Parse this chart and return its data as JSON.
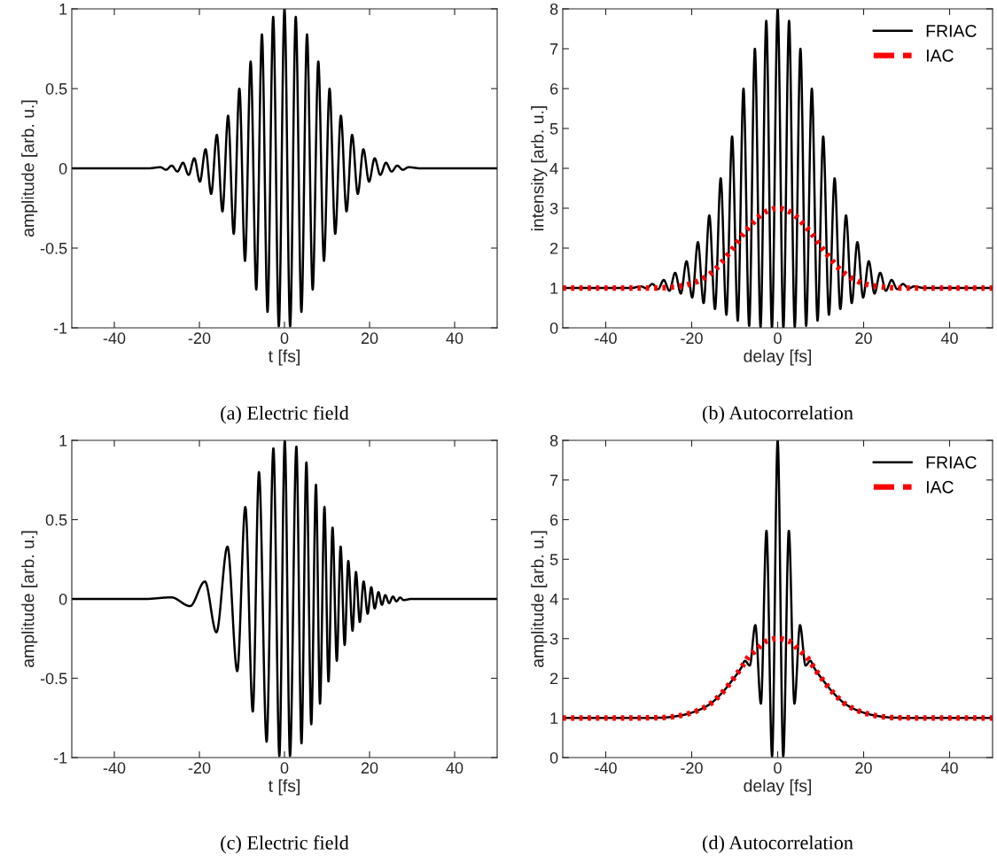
{
  "chart_data": [
    {
      "type": "line",
      "title": "(a) Electric field",
      "xlabel": "t [fs]",
      "ylabel": "amplitude [arb. u.]",
      "xlim": [
        -50,
        50
      ],
      "xticks": [
        -40,
        -20,
        0,
        20,
        40
      ],
      "ylim": [
        -1,
        1
      ],
      "yticks": [
        -1,
        -0.5,
        0,
        0.5,
        1
      ],
      "grid": false,
      "legend": false,
      "series": [
        {
          "color": "#000000",
          "line_style": "solid",
          "x": [
            -50,
            -32,
            -29.15,
            -27.83,
            -26.5,
            -25.18,
            -23.85,
            -22.53,
            -21.2,
            -19.88,
            -18.55,
            -17.23,
            -15.9,
            -14.58,
            -13.25,
            -11.93,
            -10.6,
            -9.28,
            -7.95,
            -6.63,
            -5.3,
            -3.98,
            -2.65,
            -1.33,
            0,
            1.33,
            2.65,
            3.98,
            5.3,
            6.63,
            7.95,
            9.28,
            10.6,
            11.93,
            13.25,
            14.58,
            15.9,
            17.23,
            18.55,
            19.88,
            21.2,
            22.53,
            23.85,
            25.18,
            26.5,
            27.83,
            29.15,
            32,
            50
          ],
          "values": [
            0,
            0,
            0.007,
            -0.009,
            0.017,
            -0.02,
            0.035,
            -0.041,
            0.063,
            -0.083,
            0.12,
            -0.16,
            0.21,
            -0.27,
            0.33,
            -0.41,
            0.5,
            -0.58,
            0.67,
            -0.76,
            0.84,
            -0.9,
            0.95,
            -0.99,
            1.0,
            -0.99,
            0.95,
            -0.9,
            0.84,
            -0.76,
            0.67,
            -0.58,
            0.5,
            -0.41,
            0.33,
            -0.27,
            0.21,
            -0.16,
            0.12,
            -0.083,
            0.063,
            -0.041,
            0.035,
            -0.02,
            0.017,
            -0.009,
            0.007,
            0,
            0
          ]
        }
      ]
    },
    {
      "type": "line",
      "title": "(b) Autocorrelation",
      "xlabel": "delay [fs]",
      "ylabel": "intensity [arb. u.]",
      "xlim": [
        -50,
        50
      ],
      "xticks": [
        -40,
        -20,
        0,
        20,
        40
      ],
      "ylim": [
        0,
        8
      ],
      "yticks": [
        0,
        1,
        2,
        3,
        4,
        5,
        6,
        7,
        8
      ],
      "grid": false,
      "legend": "top right",
      "series": [
        {
          "name": "FRIAC",
          "color": "#000000",
          "line_style": "solid",
          "x": [
            -50,
            -34,
            -31.8,
            -30.48,
            -29.15,
            -27.83,
            -26.5,
            -25.18,
            -23.85,
            -22.53,
            -21.2,
            -19.88,
            -18.55,
            -17.23,
            -15.9,
            -14.58,
            -13.25,
            -11.93,
            -10.6,
            -9.28,
            -7.95,
            -6.63,
            -5.3,
            -3.98,
            -2.65,
            -1.33,
            0,
            1.33,
            2.65,
            3.98,
            5.3,
            6.63,
            7.95,
            9.28,
            10.6,
            11.93,
            13.25,
            14.58,
            15.9,
            17.23,
            18.55,
            19.88,
            21.2,
            22.53,
            23.85,
            25.18,
            26.5,
            27.83,
            29.15,
            30.48,
            31.8,
            34,
            50
          ],
          "values": [
            1,
            1,
            1.04,
            0.99,
            1.1,
            0.97,
            1.2,
            0.93,
            1.38,
            0.86,
            1.67,
            0.76,
            2.15,
            0.62,
            2.82,
            0.47,
            3.75,
            0.33,
            4.8,
            0.18,
            6.0,
            0.05,
            7.0,
            0.02,
            7.7,
            0,
            8.0,
            0,
            7.7,
            0.02,
            7.0,
            0.05,
            6.0,
            0.18,
            4.8,
            0.33,
            3.75,
            0.47,
            2.82,
            0.62,
            2.15,
            0.76,
            1.67,
            0.86,
            1.38,
            0.93,
            1.2,
            0.97,
            1.1,
            0.99,
            1.04,
            1,
            1
          ]
        },
        {
          "name": "IAC",
          "color": "#ff0000",
          "line_style": "dotted",
          "x": [
            -50,
            -28,
            -25,
            -22,
            -20,
            -18,
            -16,
            -14,
            -12,
            -10,
            -8,
            -6,
            -4,
            -2,
            0,
            2,
            4,
            6,
            8,
            10,
            12,
            14,
            16,
            18,
            20,
            22,
            25,
            28,
            50
          ],
          "values": [
            1,
            1,
            1.02,
            1.06,
            1.11,
            1.2,
            1.33,
            1.52,
            1.78,
            2.05,
            2.35,
            2.6,
            2.82,
            2.95,
            3.0,
            2.95,
            2.82,
            2.6,
            2.35,
            2.05,
            1.78,
            1.52,
            1.33,
            1.2,
            1.11,
            1.06,
            1.02,
            1,
            1
          ]
        }
      ]
    },
    {
      "type": "line",
      "title": "(c) Electric field",
      "xlabel": "t [fs]",
      "ylabel": "amplitude [arb. u.]",
      "xlim": [
        -50,
        50
      ],
      "xticks": [
        -40,
        -20,
        0,
        20,
        40
      ],
      "ylim": [
        -1,
        1
      ],
      "yticks": [
        -1,
        -0.5,
        0,
        0.5,
        1
      ],
      "grid": false,
      "legend": false,
      "series": [
        {
          "color": "#000000",
          "line_style": "solid",
          "x": [
            -50,
            -32.8,
            -26.6,
            -22.2,
            -18.7,
            -16.0,
            -13.4,
            -11.1,
            -9.2,
            -7.45,
            -6.0,
            -4.2,
            -2.6,
            -1.2,
            0.07,
            1.3,
            2.8,
            4.0,
            5.15,
            6.3,
            7.4,
            8.35,
            9.4,
            10.35,
            11.3,
            12.3,
            13.2,
            14.15,
            15.0,
            16.0,
            16.8,
            17.7,
            18.6,
            19.55,
            20.4,
            21.2,
            22.1,
            22.9,
            23.7,
            24.6,
            25.5,
            26.3,
            27.2,
            28.0,
            29.8,
            50
          ],
          "values": [
            0,
            0,
            0.01,
            -0.045,
            0.11,
            -0.21,
            0.33,
            -0.455,
            0.58,
            -0.71,
            0.8,
            -0.9,
            0.95,
            -0.99,
            1.0,
            -0.99,
            0.96,
            -0.91,
            0.86,
            -0.79,
            0.72,
            -0.66,
            0.58,
            -0.52,
            0.45,
            -0.39,
            0.33,
            -0.29,
            0.24,
            -0.2,
            0.17,
            -0.145,
            0.11,
            -0.093,
            0.074,
            -0.06,
            0.043,
            -0.037,
            0.024,
            -0.026,
            0.015,
            -0.015,
            0.009,
            -0.007,
            0,
            0
          ]
        }
      ]
    },
    {
      "type": "line",
      "title": "(d) Autocorrelation",
      "xlabel": "delay [fs]",
      "ylabel": "amplitude [arb. u.]",
      "xlim": [
        -50,
        50
      ],
      "xticks": [
        -40,
        -20,
        0,
        20,
        40
      ],
      "ylim": [
        0,
        8
      ],
      "yticks": [
        0,
        1,
        2,
        3,
        4,
        5,
        6,
        7,
        8
      ],
      "grid": false,
      "legend": "top right",
      "series": [
        {
          "name": "FRIAC",
          "color": "#000000",
          "line_style": "solid",
          "x": [
            -50,
            -31,
            -26.4,
            -22.6,
            -19.5,
            -16,
            -13.3,
            -10.7,
            -8.5,
            -7.6,
            -6.5,
            -5.2,
            -3.9,
            -2.6,
            -1.3,
            0,
            1.3,
            2.6,
            3.9,
            5.2,
            6.5,
            7.6,
            8.5,
            10.7,
            13.3,
            16,
            19.5,
            22.6,
            26.4,
            31,
            50
          ],
          "values": [
            1,
            1,
            1.01,
            1.06,
            1.15,
            1.33,
            1.59,
            1.93,
            2.26,
            2.44,
            2.32,
            3.34,
            1.36,
            5.72,
            0.03,
            8.0,
            0.03,
            5.72,
            1.36,
            3.34,
            2.32,
            2.44,
            2.26,
            1.93,
            1.59,
            1.33,
            1.15,
            1.06,
            1.01,
            1,
            1
          ]
        },
        {
          "name": "IAC",
          "color": "#ff0000",
          "line_style": "dotted",
          "x": [
            -50,
            -31,
            -26.4,
            -22.6,
            -19.5,
            -16,
            -13.3,
            -10.7,
            -8.5,
            -6.7,
            -5,
            -2.75,
            0,
            2.75,
            5,
            6.7,
            8.5,
            10.7,
            13.3,
            16,
            19.5,
            22.6,
            26.4,
            31,
            50
          ],
          "values": [
            1,
            1,
            1.01,
            1.06,
            1.15,
            1.33,
            1.59,
            1.93,
            2.26,
            2.55,
            2.71,
            2.93,
            3.0,
            2.93,
            2.71,
            2.55,
            2.26,
            1.93,
            1.59,
            1.33,
            1.15,
            1.06,
            1.01,
            1,
            1
          ]
        }
      ]
    }
  ]
}
